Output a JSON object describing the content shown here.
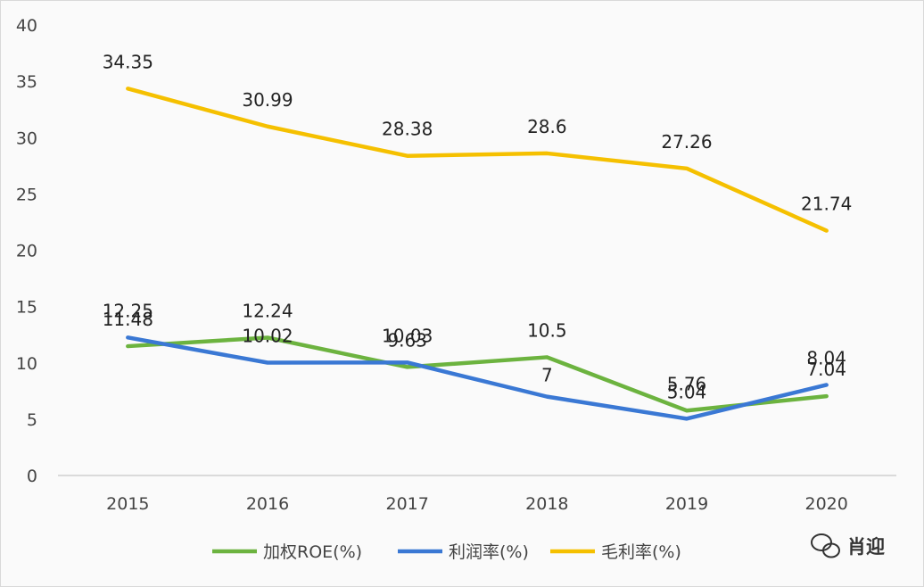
{
  "chart_data": {
    "type": "line",
    "title": "",
    "xlabel": "",
    "ylabel": "",
    "categories": [
      "2015",
      "2016",
      "2017",
      "2018",
      "2019",
      "2020"
    ],
    "ylim": [
      0,
      40
    ],
    "yticks": [
      "0",
      "5",
      "10",
      "15",
      "20",
      "25",
      "30",
      "35",
      "40"
    ],
    "series": [
      {
        "name": "加权ROE(%)",
        "color": "#6cb33f",
        "values": [
          11.48,
          12.24,
          9.63,
          10.5,
          5.76,
          7.04
        ],
        "labels": [
          "11.48",
          "12.24",
          "9.63",
          "10.5",
          "5.76",
          "7.04"
        ]
      },
      {
        "name": "利润率(%)",
        "color": "#3a78d4",
        "values": [
          12.25,
          10.02,
          10.03,
          7,
          5.04,
          8.04
        ],
        "labels": [
          "12.25",
          "10.02",
          "10.03",
          "7",
          "5.04",
          "8.04"
        ]
      },
      {
        "name": "毛利率(%)",
        "color": "#f5c000",
        "values": [
          34.35,
          30.99,
          28.38,
          28.6,
          27.26,
          21.74
        ],
        "labels": [
          "34.35",
          "30.99",
          "28.38",
          "28.6",
          "27.26",
          "21.74"
        ]
      }
    ],
    "legend_position": "bottom"
  },
  "watermark": {
    "text": "肖迎"
  }
}
